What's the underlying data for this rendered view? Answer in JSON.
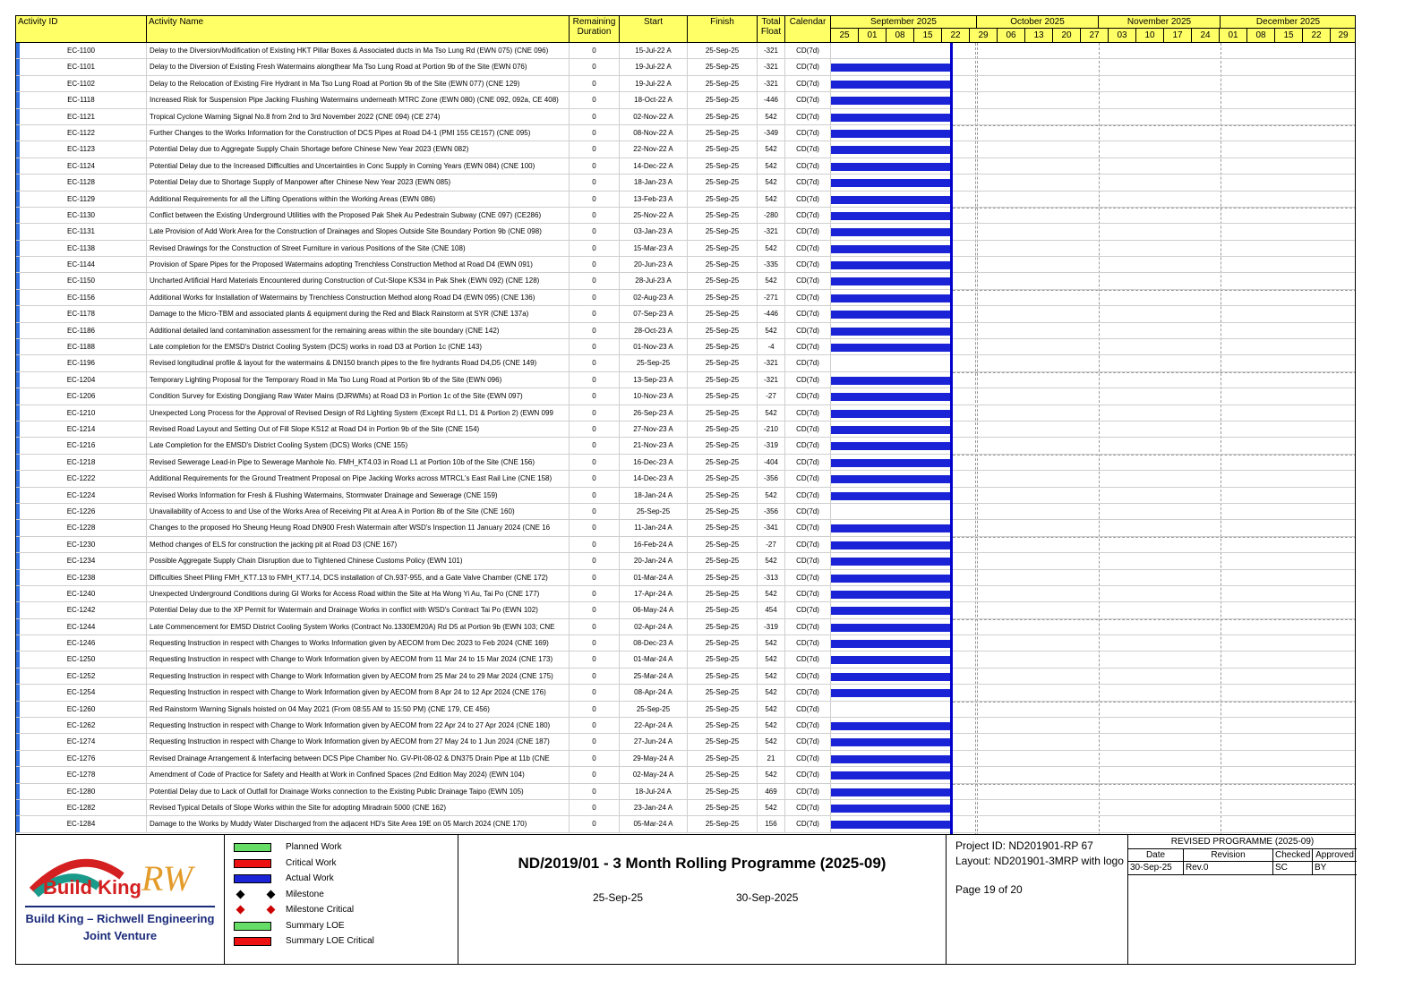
{
  "columns": {
    "id": "Activity ID",
    "name": "Activity Name",
    "remaining": "Remaining Duration",
    "start": "Start",
    "finish": "Finish",
    "float": "Total Float",
    "calendar": "Calendar"
  },
  "timeline": {
    "months": [
      "September 2025",
      "October 2025",
      "November 2025",
      "December 2025"
    ],
    "weeks": [
      "25",
      "01",
      "08",
      "15",
      "22",
      "29",
      "06",
      "13",
      "20",
      "27",
      "03",
      "10",
      "17",
      "24",
      "01",
      "08",
      "15",
      "22",
      "29"
    ]
  },
  "colors": {
    "header": "#ffff66",
    "bar": "#1a24d6",
    "data_date": "#0000cc"
  },
  "activities": [
    {
      "id": "EC-1100",
      "name": "Delay to the Diversion/Modification of Existing HKT Pillar Boxes & Associated ducts in Ma Tso Lung Rd (EWN 075) (CNE 096)",
      "rem": "0",
      "start": "15-Jul-22 A",
      "finish": "25-Sep-25",
      "float": "-321",
      "cal": "CD(7d)",
      "bar": false
    },
    {
      "id": "EC-1101",
      "name": "Delay to the Diversion of Existing Fresh Watermains alongthear Ma Tso Lung Road at Portion 9b of the Site (EWN 076)",
      "rem": "0",
      "start": "19-Jul-22 A",
      "finish": "25-Sep-25",
      "float": "-321",
      "cal": "CD(7d)",
      "bar": true
    },
    {
      "id": "EC-1102",
      "name": "Delay to the Relocation of Existing Fire Hydrant in Ma Tso Lung Road at Portion 9b of the Site (EWN 077)  (CNE 129)",
      "rem": "0",
      "start": "19-Jul-22 A",
      "finish": "25-Sep-25",
      "float": "-321",
      "cal": "CD(7d)",
      "bar": true
    },
    {
      "id": "EC-1118",
      "name": "Increased Risk for Suspension Pipe Jacking Flushing Watermains underneath MTRC Zone (EWN 080) (CNE 092, 092a, CE 408)",
      "rem": "0",
      "start": "18-Oct-22 A",
      "finish": "25-Sep-25",
      "float": "-446",
      "cal": "CD(7d)",
      "bar": true
    },
    {
      "id": "EC-1121",
      "name": "Tropical Cyclone Warning Signal No.8 from 2nd to 3rd November 2022 (CNE 094)                         (CE 274)",
      "rem": "0",
      "start": "02-Nov-22 A",
      "finish": "25-Sep-25",
      "float": "542",
      "cal": "CD(7d)",
      "bar": true
    },
    {
      "id": "EC-1122",
      "name": "Further Changes to the Works Information for the Construction of DCS Pipes at Road D4-1 (PMI 155 CE157) (CNE 095)",
      "rem": "0",
      "start": "08-Nov-22 A",
      "finish": "25-Sep-25",
      "float": "-349",
      "cal": "CD(7d)",
      "bar": true
    },
    {
      "id": "EC-1123",
      "name": "Potential Delay due to Aggregate Supply Chain Shortage before Chinese New Year 2023 (EWN 082)",
      "rem": "0",
      "start": "22-Nov-22 A",
      "finish": "25-Sep-25",
      "float": "542",
      "cal": "CD(7d)",
      "bar": true
    },
    {
      "id": "EC-1124",
      "name": "Potential Delay due to the Increased Difficulties and Uncertainties in Conc Supply in Coming Years (EWN 084) (CNE 100)",
      "rem": "0",
      "start": "14-Dec-22 A",
      "finish": "25-Sep-25",
      "float": "542",
      "cal": "CD(7d)",
      "bar": true
    },
    {
      "id": "EC-1128",
      "name": "Potential Delay due to Shortage Supply of Manpower after Chinese New Year 2023  (EWN 085)",
      "rem": "0",
      "start": "18-Jan-23 A",
      "finish": "25-Sep-25",
      "float": "542",
      "cal": "CD(7d)",
      "bar": true
    },
    {
      "id": "EC-1129",
      "name": "Additional Requirements for all the Lifting Operations within the Working Areas (EWN 086)",
      "rem": "0",
      "start": "13-Feb-23 A",
      "finish": "25-Sep-25",
      "float": "542",
      "cal": "CD(7d)",
      "bar": true
    },
    {
      "id": "EC-1130",
      "name": "Conflict between the Existing Underground Utilities with the Proposed Pak Shek Au Pedestrain Subway  (CNE 097)  (CE286)",
      "rem": "0",
      "start": "25-Nov-22 A",
      "finish": "25-Sep-25",
      "float": "-280",
      "cal": "CD(7d)",
      "bar": true
    },
    {
      "id": "EC-1131",
      "name": "Late Provision of Add Work Area for the Construction of Drainages and Slopes Outside Site Boundary Portion 9b (CNE 098)",
      "rem": "0",
      "start": "03-Jan-23 A",
      "finish": "25-Sep-25",
      "float": "-321",
      "cal": "CD(7d)",
      "bar": true
    },
    {
      "id": "EC-1138",
      "name": "Revised Drawings for the Construction of Street Furniture in various Positions of the Site (CNE 108)",
      "rem": "0",
      "start": "15-Mar-23 A",
      "finish": "25-Sep-25",
      "float": "542",
      "cal": "CD(7d)",
      "bar": true
    },
    {
      "id": "EC-1144",
      "name": "Provision of Spare Pipes for the Proposed Watermains adopting Trenchless Construction Method at Road D4 (EWN 091)",
      "rem": "0",
      "start": "20-Jun-23 A",
      "finish": "25-Sep-25",
      "float": "-335",
      "cal": "CD(7d)",
      "bar": true
    },
    {
      "id": "EC-1150",
      "name": "Uncharted Artificial Hard Materials Encountered during Construction of Cut-Slope KS34 in Pak Shek (EWN 092) (CNE 128)",
      "rem": "0",
      "start": "28-Jul-23 A",
      "finish": "25-Sep-25",
      "float": "542",
      "cal": "CD(7d)",
      "bar": true
    },
    {
      "id": "EC-1156",
      "name": "Additional Works for Installation of Watermains by Trenchless Construction Method along Road D4 (EWN 095) (CNE 136)",
      "rem": "0",
      "start": "02-Aug-23 A",
      "finish": "25-Sep-25",
      "float": "-271",
      "cal": "CD(7d)",
      "bar": true
    },
    {
      "id": "EC-1178",
      "name": "Damage to the Micro-TBM and associated plants & equipment during the Red and Black Rainstorm at SYR (CNE 137a)",
      "rem": "0",
      "start": "07-Sep-23 A",
      "finish": "25-Sep-25",
      "float": "-446",
      "cal": "CD(7d)",
      "bar": true
    },
    {
      "id": "EC-1186",
      "name": "Additional detailed land contamination assessment for the remaining areas within the site boundary (CNE 142)",
      "rem": "0",
      "start": "28-Oct-23 A",
      "finish": "25-Sep-25",
      "float": "542",
      "cal": "CD(7d)",
      "bar": true
    },
    {
      "id": "EC-1188",
      "name": "Late completion for the EMSD's District Cooling System (DCS) works in road D3 at Portion 1c (CNE 143)",
      "rem": "0",
      "start": "01-Nov-23 A",
      "finish": "25-Sep-25",
      "float": "-4",
      "cal": "CD(7d)",
      "bar": true
    },
    {
      "id": "EC-1196",
      "name": "Revised longitudinal profile & layout for the watermains & DN150 branch pipes to the fire hydrants Road D4,D5 (CNE 149)",
      "rem": "0",
      "start": "25-Sep-25",
      "finish": "25-Sep-25",
      "float": "-321",
      "cal": "CD(7d)",
      "bar": false
    },
    {
      "id": "EC-1204",
      "name": "Temporary Lighting Proposal for the Temporary Road in Ma Tso Lung Road at Portion 9b of the Site (EWN 096)",
      "rem": "0",
      "start": "13-Sep-23 A",
      "finish": "25-Sep-25",
      "float": "-321",
      "cal": "CD(7d)",
      "bar": true
    },
    {
      "id": "EC-1206",
      "name": "Condition Survey for Existing Dongjiang Raw Water Mains (DJRWMs) at Road D3 in Portion 1c of the Site (EWN 097)",
      "rem": "0",
      "start": "10-Nov-23 A",
      "finish": "25-Sep-25",
      "float": "-27",
      "cal": "CD(7d)",
      "bar": true
    },
    {
      "id": "EC-1210",
      "name": "Unexpected Long Process for the Approval of Revised Design of Rd Lighting System (Except Rd L1, D1 & Portion 2) (EWN 099",
      "rem": "0",
      "start": "26-Sep-23 A",
      "finish": "25-Sep-25",
      "float": "542",
      "cal": "CD(7d)",
      "bar": true
    },
    {
      "id": "EC-1214",
      "name": "Revised Road Layout and Setting Out of Fill Slope KS12 at Road D4 in Portion 9b of the Site  (CNE 154)",
      "rem": "0",
      "start": "27-Nov-23 A",
      "finish": "25-Sep-25",
      "float": "-210",
      "cal": "CD(7d)",
      "bar": true
    },
    {
      "id": "EC-1216",
      "name": "Late Completion for the EMSD's District Cooling System (DCS) Works (CNE 155)",
      "rem": "0",
      "start": "21-Nov-23 A",
      "finish": "25-Sep-25",
      "float": "-319",
      "cal": "CD(7d)",
      "bar": true
    },
    {
      "id": "EC-1218",
      "name": "Revised Sewerage Lead-in Pipe to Sewerage Manhole No. FMH_KT4.03 in Road L1 at Portion 10b of the Site (CNE 156)",
      "rem": "0",
      "start": "16-Dec-23 A",
      "finish": "25-Sep-25",
      "float": "-404",
      "cal": "CD(7d)",
      "bar": true
    },
    {
      "id": "EC-1222",
      "name": "Additional Requirements for the Ground Treatment Proposal on Pipe Jacking Works across MTRCL's East Rail Line (CNE 158)",
      "rem": "0",
      "start": "14-Dec-23 A",
      "finish": "25-Sep-25",
      "float": "-356",
      "cal": "CD(7d)",
      "bar": true
    },
    {
      "id": "EC-1224",
      "name": "Revised Works Information for Fresh & Flushing Watermains, Stormwater Drainage and Sewerage  (CNE 159)",
      "rem": "0",
      "start": "18-Jan-24 A",
      "finish": "25-Sep-25",
      "float": "542",
      "cal": "CD(7d)",
      "bar": true
    },
    {
      "id": "EC-1226",
      "name": "Unavailability of Access to and Use of the Works Area of Receiving Pit at Area A in Portion 8b of the Site     (CNE 160)",
      "rem": "0",
      "start": "25-Sep-25",
      "finish": "25-Sep-25",
      "float": "-356",
      "cal": "CD(7d)",
      "bar": false
    },
    {
      "id": "EC-1228",
      "name": "Changes to the proposed Ho Sheung Heung Road DN900 Fresh Watermain after WSD's Inspection 11 January 2024   (CNE 16",
      "rem": "0",
      "start": "11-Jan-24 A",
      "finish": "25-Sep-25",
      "float": "-341",
      "cal": "CD(7d)",
      "bar": true
    },
    {
      "id": "EC-1230",
      "name": "Method changes of ELS for construction the jacking pit at Road D3                  (CNE 167)",
      "rem": "0",
      "start": "16-Feb-24 A",
      "finish": "25-Sep-25",
      "float": "-27",
      "cal": "CD(7d)",
      "bar": true
    },
    {
      "id": "EC-1234",
      "name": "Possible Aggregate Supply Chain Disruption due to Tightened Chinese Customs Policy (EWN 101)",
      "rem": "0",
      "start": "20-Jan-24 A",
      "finish": "25-Sep-25",
      "float": "542",
      "cal": "CD(7d)",
      "bar": true
    },
    {
      "id": "EC-1238",
      "name": "Difficulties Sheet Piling FMH_KT7.13 to FMH_KT7.14, DCS installation of Ch.937-955, and a Gate Valve Chamber (CNE 172)",
      "rem": "0",
      "start": "01-Mar-24 A",
      "finish": "25-Sep-25",
      "float": "-313",
      "cal": "CD(7d)",
      "bar": true
    },
    {
      "id": "EC-1240",
      "name": "Unexpected Underground Conditions during GI Works for Access Road within the Site at Ha Wong Yi Au, Tai Po (CNE 177)",
      "rem": "0",
      "start": "17-Apr-24 A",
      "finish": "25-Sep-25",
      "float": "542",
      "cal": "CD(7d)",
      "bar": true
    },
    {
      "id": "EC-1242",
      "name": "Potential Delay due to the XP Permit for Watermain and Drainage Works in conflict with WSD's Contract  Tai Po (EWN 102)",
      "rem": "0",
      "start": "06-May-24 A",
      "finish": "25-Sep-25",
      "float": "454",
      "cal": "CD(7d)",
      "bar": true
    },
    {
      "id": "EC-1244",
      "name": "Late Commencement for EMSD District Cooling System Works (Contract No.1330EM20A) Rd D5 at Portion 9b (EWN 103; CNE",
      "rem": "0",
      "start": "02-Apr-24 A",
      "finish": "25-Sep-25",
      "float": "-319",
      "cal": "CD(7d)",
      "bar": true
    },
    {
      "id": "EC-1246",
      "name": "Requesting Instruction in respect with Changes to Works Information given by AECOM from Dec 2023 to Feb 2024 (CNE 169)",
      "rem": "0",
      "start": "08-Dec-23 A",
      "finish": "25-Sep-25",
      "float": "542",
      "cal": "CD(7d)",
      "bar": true
    },
    {
      "id": "EC-1250",
      "name": "Requesting Instruction in respect with Change to Work Information given by AECOM from 11 Mar 24 to 15 Mar 2024 (CNE 173)",
      "rem": "0",
      "start": "01-Mar-24 A",
      "finish": "25-Sep-25",
      "float": "542",
      "cal": "CD(7d)",
      "bar": true
    },
    {
      "id": "EC-1252",
      "name": "Requesting Instruction in respect with Change to Work Information given by AECOM from 25 Mar 24 to 29 Mar 2024 (CNE 175)",
      "rem": "0",
      "start": "25-Mar-24 A",
      "finish": "25-Sep-25",
      "float": "542",
      "cal": "CD(7d)",
      "bar": true
    },
    {
      "id": "EC-1254",
      "name": "Requesting Instruction in respect with Change to Work Information given by AECOM from 8 Apr 24 to 12 Apr 2024 (CNE 176)",
      "rem": "0",
      "start": "08-Apr-24 A",
      "finish": "25-Sep-25",
      "float": "542",
      "cal": "CD(7d)",
      "bar": true
    },
    {
      "id": "EC-1260",
      "name": "Red Rainstorm Warning Signals hoisted on 04 May 2021 (From 08:55 AM to 15:50 PM)   (CNE 179, CE 456)",
      "rem": "0",
      "start": "25-Sep-25",
      "finish": "25-Sep-25",
      "float": "542",
      "cal": "CD(7d)",
      "bar": false
    },
    {
      "id": "EC-1262",
      "name": "Requesting Instruction in respect with Change to Work Information given by AECOM from 22 Apr 24 to 27 Apr 2024 (CNE 180)",
      "rem": "0",
      "start": "22-Apr-24 A",
      "finish": "25-Sep-25",
      "float": "542",
      "cal": "CD(7d)",
      "bar": true
    },
    {
      "id": "EC-1274",
      "name": "Requesting Instruction in respect with Change to Work Information given by AECOM from 27 May 24 to 1 Jun 2024 (CNE 187)",
      "rem": "0",
      "start": "27-Jun-24 A",
      "finish": "25-Sep-25",
      "float": "542",
      "cal": "CD(7d)",
      "bar": true
    },
    {
      "id": "EC-1276",
      "name": "Revised Drainage Arrangement & Interfacing between DCS Pipe Chamber No. GV-Pit-08-02 & DN375 Drain Pipe at 11b (CNE",
      "rem": "0",
      "start": "29-May-24 A",
      "finish": "25-Sep-25",
      "float": "21",
      "cal": "CD(7d)",
      "bar": true
    },
    {
      "id": "EC-1278",
      "name": "Amendment of Code of Practice for Safety and Health at Work in Confined Spaces (2nd Edition May 2024)      (EWN 104)",
      "rem": "0",
      "start": "02-May-24 A",
      "finish": "25-Sep-25",
      "float": "542",
      "cal": "CD(7d)",
      "bar": true
    },
    {
      "id": "EC-1280",
      "name": "Potential Delay due to Lack of Outfall for Drainage Works connection to the Existing Public Drainage Taipo (EWN 105)",
      "rem": "0",
      "start": "18-Jul-24 A",
      "finish": "25-Sep-25",
      "float": "469",
      "cal": "CD(7d)",
      "bar": true
    },
    {
      "id": "EC-1282",
      "name": "Revised Typical Details of Slope Works within the Site for adopting Miradrain 5000  (CNE 162)",
      "rem": "0",
      "start": "23-Jan-24 A",
      "finish": "25-Sep-25",
      "float": "542",
      "cal": "CD(7d)",
      "bar": true
    },
    {
      "id": "EC-1284",
      "name": "Damage to the Works by Muddy Water Discharged from the adjacent HD's Site Area 19E on 05 March 2024 (CNE 170)",
      "rem": "0",
      "start": "05-Mar-24 A",
      "finish": "25-Sep-25",
      "float": "156",
      "cal": "CD(7d)",
      "bar": true
    }
  ],
  "legend": [
    {
      "label": "Planned Work",
      "color": "#66dd66",
      "kind": "bar"
    },
    {
      "label": "Critical Work",
      "color": "#ee1111",
      "kind": "bar"
    },
    {
      "label": "Actual Work",
      "color": "#1a24d6",
      "kind": "bar"
    },
    {
      "label": "Milestone",
      "color": "#000000",
      "kind": "diamond"
    },
    {
      "label": "Milestone Critical",
      "color": "#cc0000",
      "kind": "diamond"
    },
    {
      "label": "Summary LOE",
      "color": "#66dd66",
      "kind": "bar"
    },
    {
      "label": "Summary LOE Critical",
      "color": "#ee1111",
      "kind": "bar"
    }
  ],
  "logo": {
    "brand": "Build King",
    "mark": "RW",
    "line1": "Build King – Richwell Engineering",
    "line2": "Joint Venture"
  },
  "title": {
    "main": "ND/2019/01 - 3 Month Rolling Programme (2025-09)",
    "data_date": "25-Sep-25",
    "print_date": "30-Sep-2025"
  },
  "project": {
    "id": "Project ID: ND201901-RP 67",
    "layout": "Layout: ND201901-3MRP with logo",
    "page": "Page 19 of 20"
  },
  "revision": {
    "title": "REVISED PROGRAMME (2025-09)",
    "headers": [
      "Date",
      "Revision",
      "Checked",
      "Approved"
    ],
    "row": [
      "30-Sep-25",
      "Rev.0",
      "SC",
      "BY"
    ]
  }
}
